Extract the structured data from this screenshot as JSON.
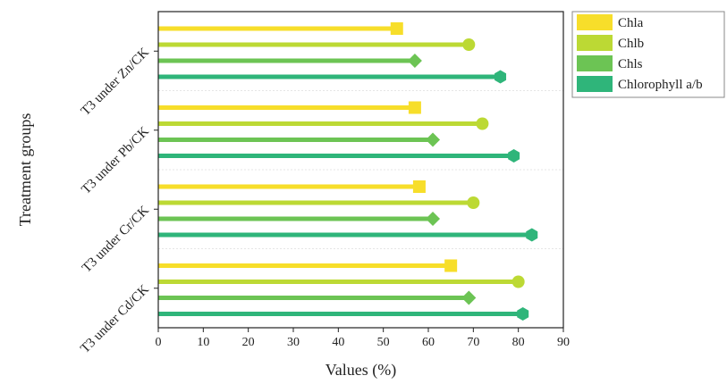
{
  "chart_data": {
    "type": "bar",
    "orientation": "horizontal",
    "marker_style": "lollipop",
    "xlabel": "Values (%)",
    "ylabel": "Treatment groups",
    "xlim": [
      0,
      90
    ],
    "xticks": [
      0,
      10,
      20,
      30,
      40,
      50,
      60,
      70,
      80,
      90
    ],
    "categories": [
      "T3 under Zn/CK",
      "T3 under Pb/CK",
      "T3 under Cr/CK",
      "T3 under Cd/CK"
    ],
    "series": [
      {
        "name": "Chla",
        "color": "#f7de2a",
        "marker": "square",
        "values": [
          53,
          57,
          58,
          65
        ]
      },
      {
        "name": "Chlb",
        "color": "#bcd934",
        "marker": "circle",
        "values": [
          69,
          72,
          70,
          80
        ]
      },
      {
        "name": "Chls",
        "color": "#6cc454",
        "marker": "diamond",
        "values": [
          57,
          61,
          61,
          69
        ]
      },
      {
        "name": "Chlorophyll a/b",
        "color": "#2fb57a",
        "marker": "hexagon",
        "values": [
          76,
          79,
          83,
          81
        ]
      }
    ],
    "grid": false,
    "group_separators": true,
    "legend": "top-right"
  }
}
